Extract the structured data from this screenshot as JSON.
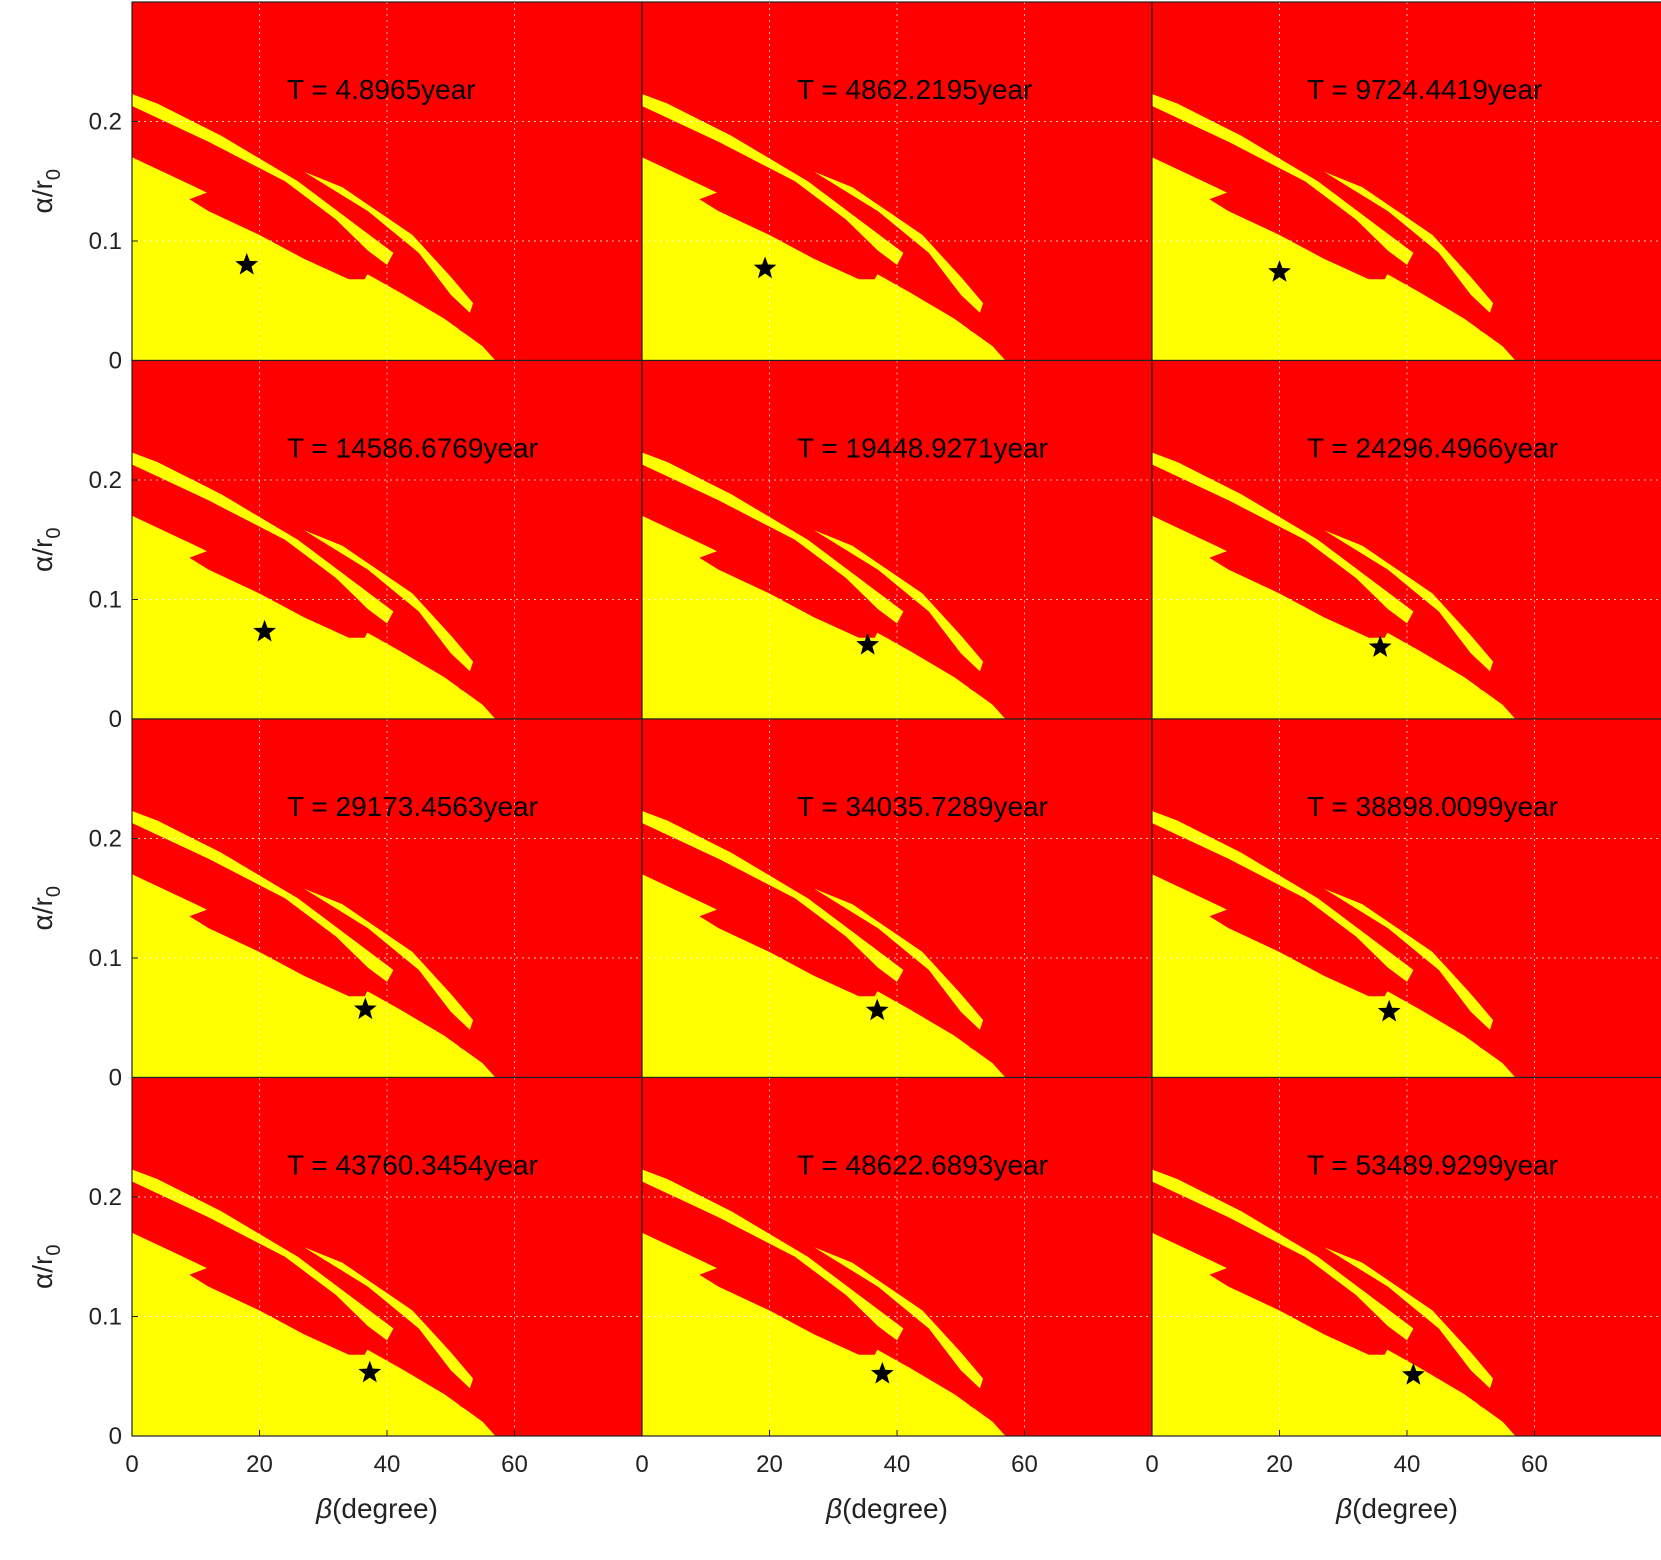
{
  "chart_data": {
    "type": "heatmap",
    "layout": {
      "rows": 4,
      "cols": 3
    },
    "xlabel_var": "β",
    "xlabel_unit": "(degree)",
    "ylabel_var": "α/r",
    "ylabel_sub": "0",
    "xlim": [
      0,
      80
    ],
    "ylim": [
      0,
      0.3
    ],
    "xticks": [
      0,
      20,
      40,
      60
    ],
    "yticks": [
      0,
      0.1,
      0.2
    ],
    "xtick_labels": [
      "0",
      "20",
      "40",
      "60"
    ],
    "ytick_labels": [
      "0",
      "0.1",
      "0.2"
    ],
    "grid": true,
    "colors": {
      "unstable": "#ff0000",
      "stable": "#ffff00",
      "marker": "#000000"
    },
    "marker": "star",
    "panels": [
      {
        "label": "T = 4.8965year",
        "star": [
          18.0,
          0.08
        ]
      },
      {
        "label": "T = 4862.2195year",
        "star": [
          19.3,
          0.077
        ]
      },
      {
        "label": "T = 9724.4419year",
        "star": [
          20.0,
          0.074
        ]
      },
      {
        "label": "T = 14586.6769year",
        "star": [
          20.8,
          0.073
        ]
      },
      {
        "label": "T = 19448.9271year",
        "star": [
          35.4,
          0.062
        ]
      },
      {
        "label": "T = 24296.4966year",
        "star": [
          35.8,
          0.06
        ]
      },
      {
        "label": "T = 29173.4563year",
        "star": [
          36.6,
          0.057
        ]
      },
      {
        "label": "T = 34035.7289year",
        "star": [
          36.9,
          0.056
        ]
      },
      {
        "label": "T = 38898.0099year",
        "star": [
          37.2,
          0.055
        ]
      },
      {
        "label": "T = 43760.3454year",
        "star": [
          37.3,
          0.053
        ]
      },
      {
        "label": "T = 48622.6893year",
        "star": [
          37.7,
          0.052
        ]
      },
      {
        "label": "T = 53489.9299year",
        "star": [
          41.0,
          0.051
        ]
      }
    ]
  }
}
